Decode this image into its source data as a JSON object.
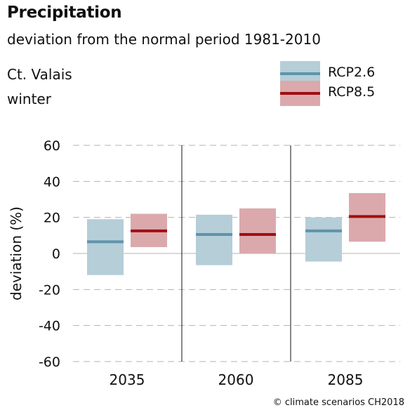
{
  "header": {
    "title": "Precipitation",
    "subtitle": "deviation from the normal period 1981-2010",
    "region": "Ct. Valais",
    "season": "winter"
  },
  "footer": {
    "copyright": "© climate scenarios CH2018"
  },
  "chart_data": {
    "type": "bar",
    "ylabel": "deviation (%)",
    "ylim": [
      -60,
      60
    ],
    "yticks": [
      60,
      40,
      20,
      0,
      -20,
      -40,
      -60
    ],
    "grid": "dashed horizontal",
    "legend_position": "top-right",
    "categories": [
      "2035",
      "2060",
      "2085"
    ],
    "series": [
      {
        "name": "RCP2.6",
        "fill_color": "#b5ced8",
        "line_color": "#5f94ab",
        "ranges": [
          [
            -12,
            19
          ],
          [
            -6.5,
            21.5
          ],
          [
            -4.5,
            20
          ]
        ],
        "median": [
          6.5,
          10.5,
          12.5
        ]
      },
      {
        "name": "RCP8.5",
        "fill_color": "#dba9ac",
        "line_color": "#a10e12",
        "ranges": [
          [
            3.5,
            22
          ],
          [
            0,
            25
          ],
          [
            6.5,
            33.5
          ]
        ],
        "median": [
          12.5,
          10.5,
          20.5
        ]
      }
    ]
  }
}
